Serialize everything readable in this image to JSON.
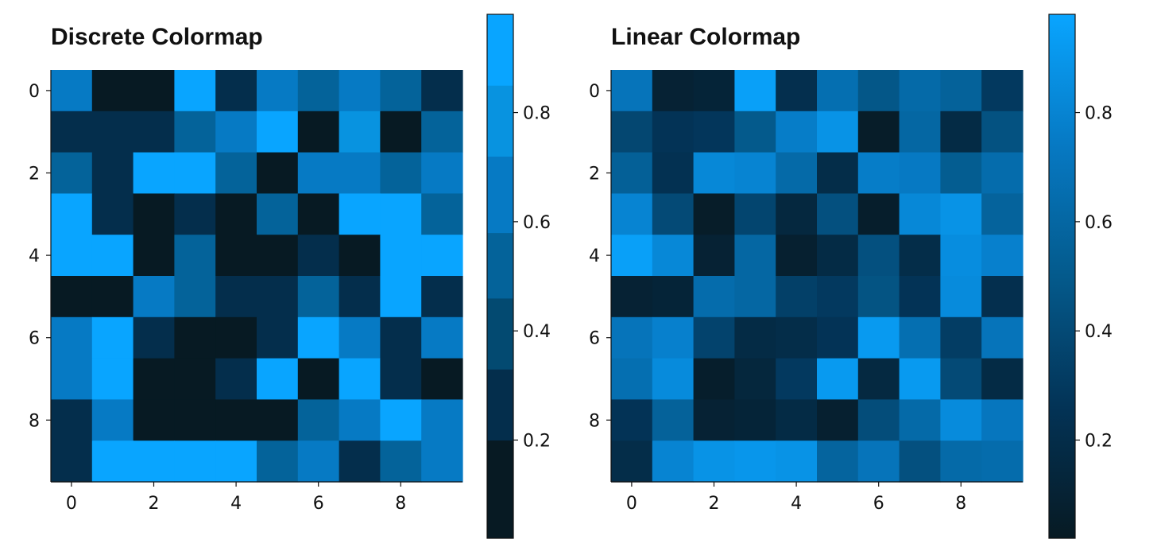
{
  "chart_data": [
    {
      "type": "heatmap",
      "title": "Discrete Colormap",
      "colormap": "discrete",
      "x_ticks": [
        0,
        2,
        4,
        6,
        8
      ],
      "y_ticks": [
        0,
        2,
        4,
        6,
        8
      ],
      "xlim": [
        -0.5,
        9.5
      ],
      "ylim": [
        9.5,
        -0.5
      ],
      "colorbar": {
        "ticks": [
          0.2,
          0.4,
          0.6,
          0.8
        ],
        "tick_labels": [
          "0.2",
          "0.4",
          "0.6",
          "0.8"
        ],
        "range": [
          0.02,
          0.98
        ],
        "levels": 7,
        "bounds": [
          0.02,
          0.2,
          0.33,
          0.46,
          0.58,
          0.72,
          0.85,
          0.98
        ],
        "colors": [
          "#071a23",
          "#042e4c",
          "#034a71",
          "#04639a",
          "#067ac4",
          "#0893e0",
          "#09a5ff"
        ]
      },
      "values": [
        [
          0.68,
          0.05,
          0.06,
          0.93,
          0.26,
          0.66,
          0.5,
          0.7,
          0.51,
          0.25
        ],
        [
          0.27,
          0.28,
          0.29,
          0.53,
          0.71,
          0.89,
          0.08,
          0.72,
          0.07,
          0.5
        ],
        [
          0.54,
          0.32,
          0.9,
          0.91,
          0.47,
          0.09,
          0.68,
          0.69,
          0.49,
          0.69
        ],
        [
          0.91,
          0.3,
          0.12,
          0.25,
          0.11,
          0.48,
          0.09,
          0.95,
          0.94,
          0.49
        ],
        [
          0.94,
          0.92,
          0.1,
          0.5,
          0.09,
          0.1,
          0.24,
          0.12,
          0.93,
          0.92
        ],
        [
          0.08,
          0.1,
          0.68,
          0.53,
          0.3,
          0.29,
          0.56,
          0.25,
          0.92,
          0.27
        ],
        [
          0.68,
          0.9,
          0.25,
          0.1,
          0.12,
          0.28,
          0.9,
          0.71,
          0.3,
          0.67
        ],
        [
          0.7,
          0.92,
          0.12,
          0.1,
          0.3,
          0.91,
          0.08,
          0.9,
          0.3,
          0.06
        ],
        [
          0.3,
          0.7,
          0.12,
          0.11,
          0.13,
          0.1,
          0.48,
          0.69,
          0.92,
          0.71
        ],
        [
          0.27,
          0.93,
          0.94,
          0.92,
          0.91,
          0.5,
          0.69,
          0.27,
          0.49,
          0.7
        ]
      ]
    },
    {
      "type": "heatmap",
      "title": "Linear Colormap",
      "colormap": "linear",
      "x_ticks": [
        0,
        2,
        4,
        6,
        8
      ],
      "y_ticks": [
        0,
        2,
        4,
        6,
        8
      ],
      "xlim": [
        -0.5,
        9.5
      ],
      "ylim": [
        9.5,
        -0.5
      ],
      "colorbar": {
        "ticks": [
          0.2,
          0.4,
          0.6,
          0.8
        ],
        "tick_labels": [
          "0.2",
          "0.4",
          "0.6",
          "0.8"
        ],
        "range": [
          0.02,
          0.98
        ],
        "stops": [
          "#071a23",
          "#033356",
          "#045a8c",
          "#0679c3",
          "#09a5ff"
        ]
      },
      "values": [
        [
          0.7,
          0.1,
          0.12,
          0.95,
          0.22,
          0.66,
          0.48,
          0.62,
          0.56,
          0.3
        ],
        [
          0.38,
          0.26,
          0.28,
          0.5,
          0.76,
          0.88,
          0.05,
          0.6,
          0.18,
          0.45
        ],
        [
          0.55,
          0.24,
          0.82,
          0.8,
          0.62,
          0.2,
          0.76,
          0.74,
          0.52,
          0.64
        ],
        [
          0.8,
          0.4,
          0.05,
          0.37,
          0.15,
          0.44,
          0.06,
          0.82,
          0.88,
          0.57
        ],
        [
          0.95,
          0.82,
          0.1,
          0.6,
          0.08,
          0.18,
          0.44,
          0.2,
          0.85,
          0.78
        ],
        [
          0.1,
          0.12,
          0.64,
          0.6,
          0.34,
          0.3,
          0.46,
          0.26,
          0.84,
          0.22
        ],
        [
          0.7,
          0.78,
          0.36,
          0.18,
          0.2,
          0.26,
          0.92,
          0.66,
          0.32,
          0.7
        ],
        [
          0.66,
          0.84,
          0.06,
          0.14,
          0.3,
          0.92,
          0.16,
          0.92,
          0.4,
          0.18
        ],
        [
          0.26,
          0.56,
          0.1,
          0.12,
          0.18,
          0.08,
          0.42,
          0.62,
          0.84,
          0.72
        ],
        [
          0.2,
          0.8,
          0.88,
          0.9,
          0.88,
          0.58,
          0.7,
          0.44,
          0.62,
          0.64
        ]
      ]
    }
  ]
}
